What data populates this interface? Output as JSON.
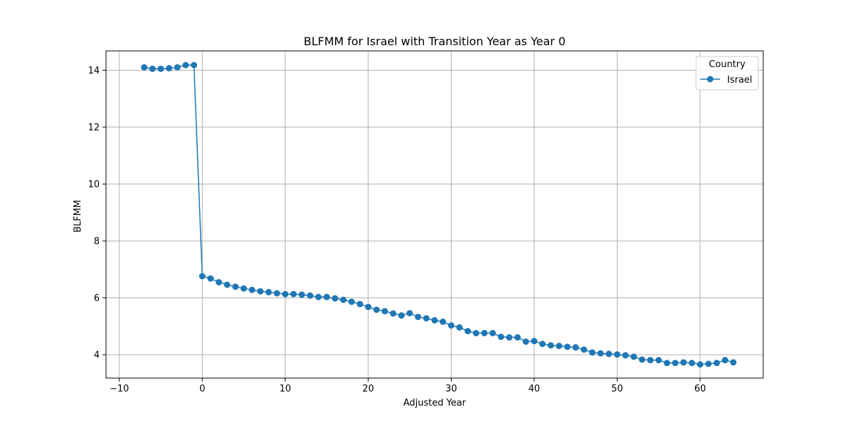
{
  "chart_data": {
    "type": "line",
    "title": "BLFMM for Israel with Transition Year as Year 0",
    "xlabel": "Adjusted Year",
    "ylabel": "BLFMM",
    "xlim": [
      -11.6,
      67.6
    ],
    "ylim": [
      3.18,
      14.68
    ],
    "xticks": [
      -10,
      0,
      10,
      20,
      30,
      40,
      50,
      60
    ],
    "yticks": [
      4,
      6,
      8,
      10,
      12,
      14
    ],
    "grid": true,
    "legend": {
      "title": "Country",
      "position": "top-right",
      "entries": [
        "Israel"
      ]
    },
    "series": [
      {
        "name": "Israel",
        "color": "#1f77b4",
        "marker": "circle",
        "x": [
          -7,
          -6,
          -5,
          -4,
          -3,
          -2,
          -1,
          0,
          1,
          2,
          3,
          4,
          5,
          6,
          7,
          8,
          9,
          10,
          11,
          12,
          13,
          14,
          15,
          16,
          17,
          18,
          19,
          20,
          21,
          22,
          23,
          24,
          25,
          26,
          27,
          28,
          29,
          30,
          31,
          32,
          33,
          34,
          35,
          36,
          37,
          38,
          39,
          40,
          41,
          42,
          43,
          44,
          45,
          46,
          47,
          48,
          49,
          50,
          51,
          52,
          53,
          54,
          55,
          56,
          57,
          58,
          59,
          60,
          61,
          62,
          63,
          64
        ],
        "y": [
          14.1,
          14.05,
          14.05,
          14.07,
          14.1,
          14.18,
          14.18,
          6.76,
          6.68,
          6.55,
          6.46,
          6.39,
          6.33,
          6.28,
          6.23,
          6.2,
          6.16,
          6.13,
          6.13,
          6.11,
          6.08,
          6.03,
          6.03,
          5.98,
          5.93,
          5.86,
          5.78,
          5.68,
          5.58,
          5.53,
          5.45,
          5.38,
          5.46,
          5.33,
          5.28,
          5.21,
          5.16,
          5.03,
          4.96,
          4.83,
          4.76,
          4.76,
          4.76,
          4.63,
          4.61,
          4.61,
          4.46,
          4.48,
          4.38,
          4.33,
          4.31,
          4.28,
          4.26,
          4.18,
          4.08,
          4.05,
          4.03,
          4.01,
          3.98,
          3.93,
          3.83,
          3.81,
          3.81,
          3.71,
          3.71,
          3.73,
          3.71,
          3.66,
          3.68,
          3.71,
          3.81,
          3.73
        ]
      }
    ]
  }
}
